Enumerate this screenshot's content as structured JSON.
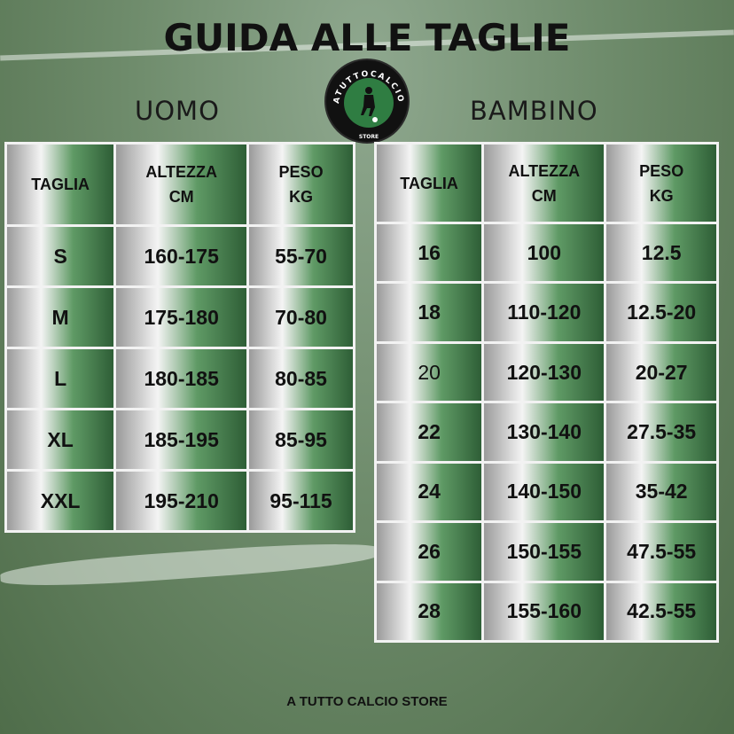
{
  "title": "GUIDA ALLE TAGLIE",
  "logo": {
    "text": "ATUTTOCALCIO",
    "subtext": "STORE",
    "colors": {
      "ring": "#111111",
      "center": "#2f7d42"
    }
  },
  "uomo": {
    "label": "UOMO",
    "headers": [
      "TAGLIA",
      "ALTEZZA\nCM",
      "PESO\nKG"
    ],
    "rows": [
      [
        "S",
        "160-175",
        "55-70"
      ],
      [
        "M",
        "175-180",
        "70-80"
      ],
      [
        "L",
        "180-185",
        "80-85"
      ],
      [
        "XL",
        "185-195",
        "85-95"
      ],
      [
        "XXL",
        "195-210",
        "95-115"
      ]
    ]
  },
  "bambino": {
    "label": "BAMBINO",
    "headers": [
      "TAGLIA",
      "ALTEZZA\nCM",
      "PESO\nKG"
    ],
    "rows": [
      [
        "16",
        "100",
        "12.5"
      ],
      [
        "18",
        "110-120",
        "12.5-20"
      ],
      [
        "20",
        "120-130",
        "20-27"
      ],
      [
        "22",
        "130-140",
        "27.5-35"
      ],
      [
        "24",
        "140-150",
        "35-42"
      ],
      [
        "26",
        "150-155",
        "47.5-55"
      ],
      [
        "28",
        "155-160",
        "42.5-55"
      ]
    ]
  },
  "footer": "A TUTTO CALCIO STORE",
  "colors": {
    "cell_light": "#f4f4f4",
    "cell_green": "#5f9a65",
    "cell_dark": "#2e5e36",
    "grid": "#f2f2f2"
  }
}
